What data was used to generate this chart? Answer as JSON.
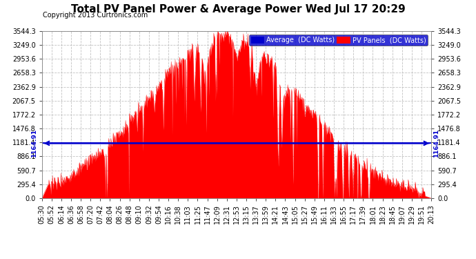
{
  "title": "Total PV Panel Power & Average Power Wed Jul 17 20:29",
  "copyright": "Copyright 2013 Curtronics.com",
  "legend_blue_label": "Average  (DC Watts)",
  "legend_red_label": "PV Panels  (DC Watts)",
  "average_line": 1164.91,
  "yticks": [
    0.0,
    295.4,
    590.7,
    886.1,
    1181.4,
    1476.8,
    1772.2,
    2067.5,
    2362.9,
    2658.3,
    2953.6,
    3249.0,
    3544.3
  ],
  "ymin": 0.0,
  "ymax": 3544.3,
  "xtick_labels": [
    "05:30",
    "05:52",
    "06:14",
    "06:36",
    "06:58",
    "07:20",
    "07:42",
    "08:04",
    "08:26",
    "08:48",
    "09:10",
    "09:32",
    "09:54",
    "10:16",
    "10:38",
    "11:03",
    "11:25",
    "11:47",
    "12:09",
    "12:31",
    "12:53",
    "13:15",
    "13:37",
    "13:59",
    "14:21",
    "14:43",
    "15:05",
    "15:27",
    "15:49",
    "16:11",
    "16:33",
    "16:55",
    "17:17",
    "17:39",
    "18:01",
    "18:23",
    "18:45",
    "19:07",
    "19:29",
    "19:51",
    "20:13"
  ],
  "background_color": "#ffffff",
  "fill_color": "#ff0000",
  "avg_line_color": "#0000cc",
  "grid_color": "#bbbbbb",
  "title_fontsize": 11,
  "copyright_fontsize": 7,
  "tick_fontsize": 7,
  "avg_annotation_fontsize": 6.5,
  "legend_fontsize": 7
}
